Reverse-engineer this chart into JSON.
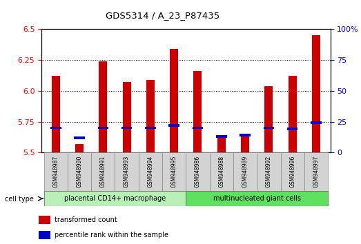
{
  "title": "GDS5314 / A_23_P87435",
  "samples": [
    "GSM948987",
    "GSM948990",
    "GSM948991",
    "GSM948993",
    "GSM948994",
    "GSM948995",
    "GSM948986",
    "GSM948988",
    "GSM948989",
    "GSM948992",
    "GSM948996",
    "GSM948997"
  ],
  "transformed_count": [
    6.12,
    5.57,
    6.24,
    6.07,
    6.09,
    6.34,
    6.16,
    5.62,
    5.63,
    6.04,
    6.12,
    6.45
  ],
  "percentile_rank": [
    20,
    12,
    20,
    20,
    20,
    22,
    20,
    13,
    14,
    20,
    19,
    24
  ],
  "groups": [
    {
      "label": "placental CD14+ macrophage",
      "start": 0,
      "end": 6,
      "color": "#b8f0b8"
    },
    {
      "label": "multinucleated giant cells",
      "start": 6,
      "end": 12,
      "color": "#60e060"
    }
  ],
  "ylim_left": [
    5.5,
    6.5
  ],
  "ylim_right": [
    0,
    100
  ],
  "yticks_left": [
    5.5,
    5.75,
    6.0,
    6.25,
    6.5
  ],
  "yticks_right": [
    0,
    25,
    50,
    75,
    100
  ],
  "bar_color": "#cc0000",
  "percentile_color": "#0000cc",
  "background_color": "#ffffff",
  "bar_width": 0.35,
  "base_value": 5.5,
  "cell_type_label": "cell type",
  "legend_items": [
    {
      "label": "transformed count",
      "color": "#cc0000"
    },
    {
      "label": "percentile rank within the sample",
      "color": "#0000cc"
    }
  ]
}
